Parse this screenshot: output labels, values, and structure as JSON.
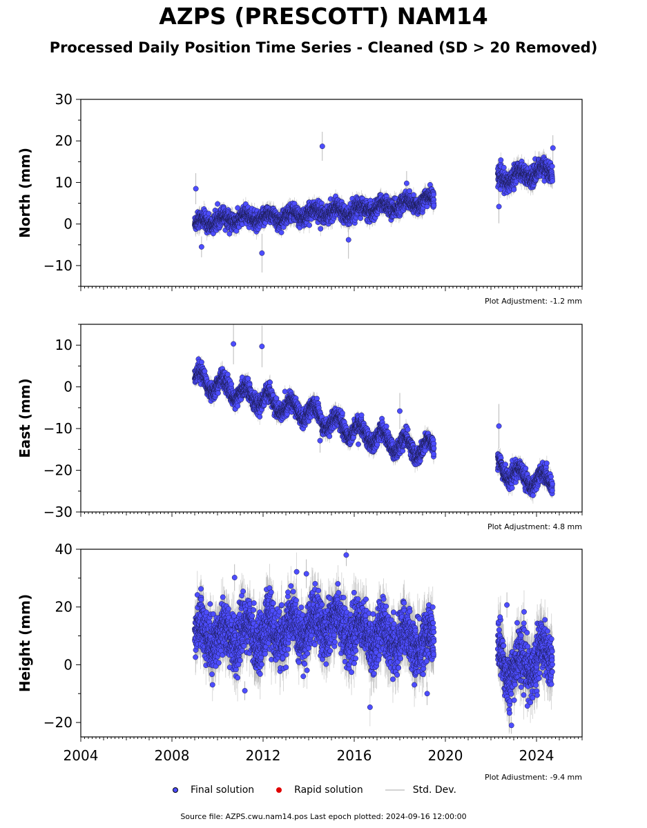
{
  "title": "AZPS (PRESCOTT) NAM14",
  "subtitle": "Processed Daily Position Time Series - Cleaned (SD > 20 Removed)",
  "footer": "Source file: AZPS.cwu.nam14.pos  Last epoch plotted: 2024-09-16 12:00:00",
  "legend": {
    "final": "Final solution",
    "rapid": "Rapid solution",
    "stddev": "Std. Dev."
  },
  "colors": {
    "final": "#4d4dff",
    "rapid": "#e00000",
    "stddev": "#c8c8c8"
  },
  "chart_data": [
    {
      "type": "scatter",
      "ylabel": "North (mm)",
      "adjustment": "Plot Adjustment: -1.2 mm",
      "xlim": [
        2004,
        2026
      ],
      "ylim": [
        -15,
        30
      ],
      "yticks": [
        -10,
        0,
        10,
        20,
        30
      ],
      "segments": [
        {
          "x": [
            2009.0,
            2010.0,
            2011.0,
            2012.0,
            2013.0,
            2014.0,
            2015.0,
            2016.0,
            2017.0,
            2018.0,
            2019.0,
            2019.5
          ],
          "y": [
            0.0,
            1.0,
            1.3,
            1.5,
            1.8,
            2.5,
            3.0,
            3.2,
            4.0,
            4.5,
            5.5,
            6.0
          ],
          "amp": 1.0,
          "noise": 1.0
        },
        {
          "x": [
            2022.3,
            2023.0,
            2024.0,
            2024.7
          ],
          "y": [
            10.5,
            11.5,
            12.5,
            13.0
          ],
          "amp": 1.2,
          "noise": 1.1
        }
      ],
      "outliers": [
        [
          2009.05,
          8.5
        ],
        [
          2014.6,
          18.7
        ],
        [
          2011.95,
          -7.0
        ],
        [
          2009.3,
          -5.5
        ],
        [
          2015.75,
          -3.8
        ],
        [
          2024.72,
          18.3
        ],
        [
          2022.35,
          4.2
        ],
        [
          2018.3,
          9.8
        ]
      ]
    },
    {
      "type": "scatter",
      "ylabel": "East (mm)",
      "adjustment": "Plot Adjustment: 4.8 mm",
      "xlim": [
        2004,
        2026
      ],
      "ylim": [
        -30,
        15
      ],
      "yticks": [
        -30,
        -20,
        -10,
        0,
        10
      ],
      "segments": [
        {
          "x": [
            2009.0,
            2010.0,
            2011.0,
            2012.0,
            2013.0,
            2014.0,
            2015.0,
            2016.0,
            2017.0,
            2018.0,
            2019.0,
            2019.5
          ],
          "y": [
            2.0,
            0.5,
            -1.5,
            -3.0,
            -5.0,
            -6.0,
            -8.5,
            -10.5,
            -12.0,
            -14.0,
            -15.0,
            -14.5
          ],
          "amp": 2.0,
          "noise": 1.0
        },
        {
          "x": [
            2022.3,
            2023.0,
            2024.0,
            2024.7
          ],
          "y": [
            -19.0,
            -21.0,
            -22.5,
            -22.0
          ],
          "amp": 1.8,
          "noise": 1.0
        }
      ],
      "outliers": [
        [
          2010.7,
          10.3
        ],
        [
          2011.95,
          9.7
        ],
        [
          2018.0,
          -5.8
        ],
        [
          2022.35,
          -9.4
        ],
        [
          2014.5,
          -12.9
        ]
      ]
    },
    {
      "type": "scatter",
      "ylabel": "Height (mm)",
      "adjustment": "Plot Adjustment: -9.4 mm",
      "xlim": [
        2004,
        2026
      ],
      "ylim": [
        -25,
        40
      ],
      "yticks": [
        -20,
        0,
        20,
        40
      ],
      "xticks": [
        2004,
        2008,
        2012,
        2016,
        2020,
        2024
      ],
      "segments": [
        {
          "x": [
            2009.0,
            2010.0,
            2011.0,
            2012.0,
            2013.0,
            2014.0,
            2015.0,
            2016.0,
            2017.0,
            2018.0,
            2019.0,
            2019.5
          ],
          "y": [
            11.0,
            10.0,
            10.5,
            11.0,
            12.0,
            12.5,
            15.0,
            12.0,
            10.0,
            9.0,
            7.5,
            7.0
          ],
          "amp": 4.0,
          "noise": 4.5
        },
        {
          "x": [
            2022.3,
            2023.0,
            2024.0,
            2024.7
          ],
          "y": [
            3.0,
            -2.0,
            2.0,
            4.0
          ],
          "amp": 4.5,
          "noise": 4.5
        }
      ],
      "outliers": [
        [
          2015.65,
          38.0
        ],
        [
          2013.9,
          31.5
        ],
        [
          2010.75,
          30.2
        ],
        [
          2022.7,
          20.7
        ],
        [
          2022.9,
          -21.0
        ],
        [
          2011.2,
          -9.0
        ],
        [
          2019.2,
          -10.0
        ],
        [
          2022.4,
          16.5
        ]
      ]
    }
  ]
}
